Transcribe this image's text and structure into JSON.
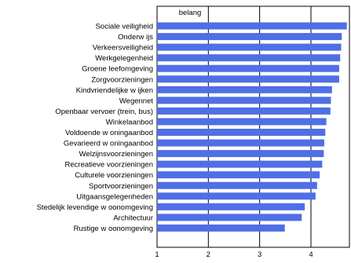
{
  "chart_data": {
    "type": "bar",
    "orientation": "horizontal",
    "title": "belang",
    "xlabel": "",
    "ylabel": "",
    "xlim": [
      1,
      4.75
    ],
    "x_ticks": [
      "1",
      "2",
      "3",
      "4"
    ],
    "grid": "vertical",
    "bar_color": "#4f6fe6",
    "categories": [
      "Sociale veiligheid",
      "Onderw ijs",
      "Verkeersveiligheid",
      "Werkgelegenheid",
      "Groene leefomgeving",
      "Zorgvoorzieningen",
      "Kindvriendelijke w ijken",
      "Wegennet",
      "Openbaar vervoer (trein, bus)",
      "Winkelaanbod",
      "Voldoende w oningaanbod",
      "Gevarieerd w oningaanbod",
      "Welzijnsvoorzieningen",
      "Recreatieve voorzieningen",
      "Culturele voorzieningen",
      "Sportvoorzieningen",
      "Uitgaansgelegenheden",
      "Stedelijk levendige w oonomgeving",
      "Architectuur",
      "Rustige w oonomgeving"
    ],
    "values": [
      4.7,
      4.6,
      4.59,
      4.57,
      4.55,
      4.55,
      4.41,
      4.39,
      4.38,
      4.3,
      4.28,
      4.26,
      4.25,
      4.22,
      4.17,
      4.12,
      4.09,
      3.88,
      3.82,
      3.49
    ]
  }
}
